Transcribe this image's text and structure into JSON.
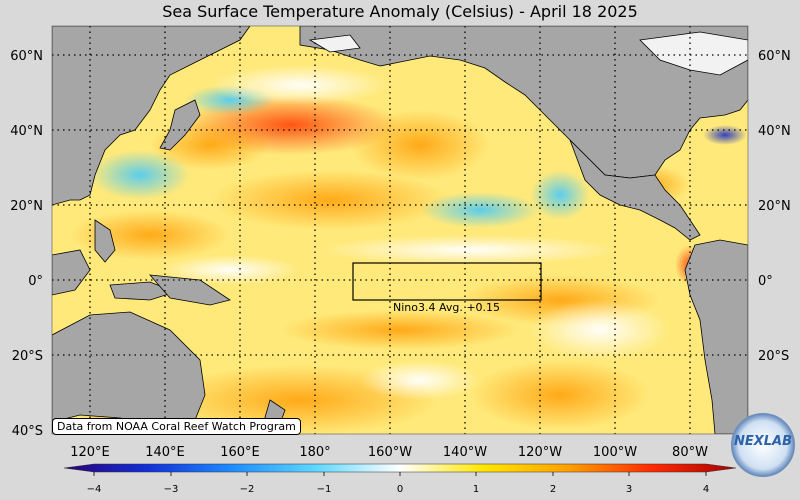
{
  "title": "Sea Surface Temperature Anomaly (Celsius) - April 18 2025",
  "latitude_labels_left": [
    "60°N",
    "40°N",
    "20°N",
    "0°",
    "20°S",
    "40°S"
  ],
  "latitude_labels_right": [
    "60°N",
    "40°N",
    "20°N",
    "0°",
    "20°S"
  ],
  "longitude_labels": [
    "120°E",
    "140°E",
    "160°E",
    "180°",
    "160°W",
    "140°W",
    "120°W",
    "100°W",
    "80°W"
  ],
  "colorbar": {
    "ticks": [
      "−4",
      "−3",
      "−2",
      "−1",
      "0",
      "1",
      "2",
      "3",
      "4"
    ],
    "colors": [
      "#2a0077",
      "#1230d8",
      "#1f8cff",
      "#5fd8ff",
      "#ffffff",
      "#ffe600",
      "#ffa000",
      "#ff2a00",
      "#a80000"
    ]
  },
  "nino_box_label": "Nino3.4 Avg. +0.15",
  "source_note": "Data from NOAA Coral Reef Watch Program",
  "logo_text": "NEXLAB",
  "colors": {
    "land": "#a6a6a6",
    "ocean_base": "#ffe97a",
    "frame_bg": "#d9d9d9"
  }
}
